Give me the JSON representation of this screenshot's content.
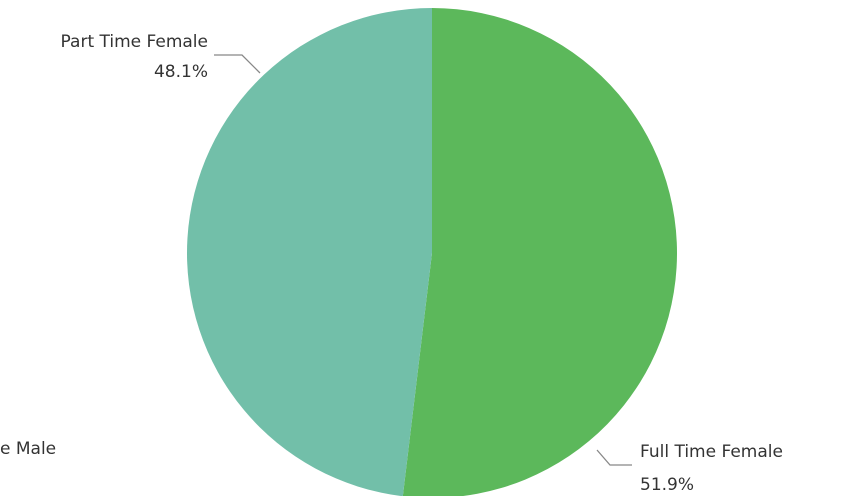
{
  "chart_data": {
    "type": "pie",
    "categories": [
      "Full Time Female",
      "Part Time Female"
    ],
    "values": [
      51.9,
      48.1
    ],
    "value_labels": [
      "51.9%",
      "48.1%"
    ],
    "colors": [
      "#5cb85b",
      "#72bfa9"
    ],
    "annotations": [
      "e Male"
    ]
  }
}
